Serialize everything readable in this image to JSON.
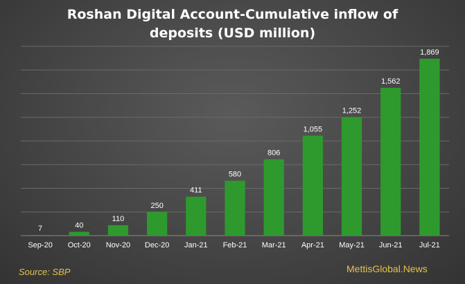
{
  "title_line1": "Roshan Digital Account-Cumulative inflow of",
  "title_line2": "deposits (USD million)",
  "source": "Source: SBP",
  "brand": "MettisGlobal.News",
  "colors": {
    "bar": "#2e9a2e",
    "grid": "#6a6a6a",
    "axis": "#8a8a8a",
    "label": "#ffffff",
    "accent": "#e8c24a"
  },
  "chart_data": {
    "type": "bar",
    "title": "Roshan Digital Account-Cumulative inflow of deposits (USD million)",
    "categories": [
      "Sep-20",
      "Oct-20",
      "Nov-20",
      "Dec-20",
      "Jan-21",
      "Feb-21",
      "Mar-21",
      "Apr-21",
      "May-21",
      "Jun-21",
      "Jul-21"
    ],
    "values": [
      7,
      40,
      110,
      250,
      411,
      580,
      806,
      1055,
      1252,
      1562,
      1869
    ],
    "data_labels": [
      "7",
      "40",
      "110",
      "250",
      "411",
      "580",
      "806",
      "1,055",
      "1,252",
      "1,562",
      "1,869"
    ],
    "ylim": [
      0,
      2000
    ],
    "grid": true,
    "legend": "none"
  }
}
